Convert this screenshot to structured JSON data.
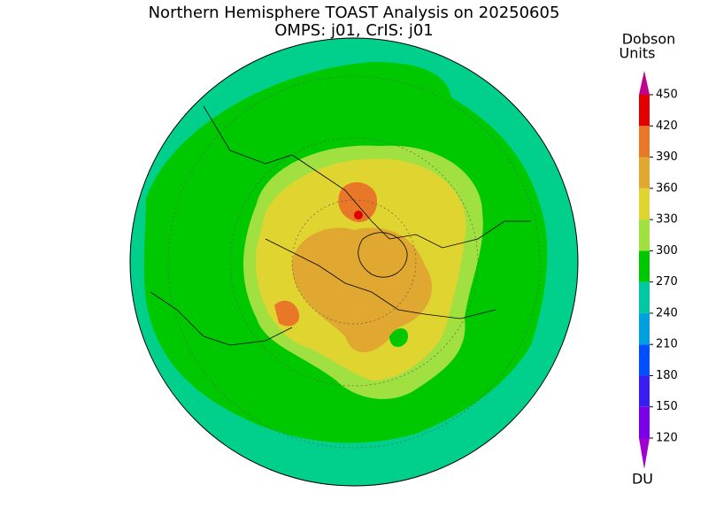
{
  "header": {
    "title": "Northern Hemisphere TOAST Analysis on 20250605",
    "subtitle": "OMPS: j01, CrIS: j01"
  },
  "colorbar": {
    "label_lines": [
      "Dobson",
      "Units"
    ],
    "unit": "DU",
    "ticks": [
      120,
      150,
      180,
      210,
      240,
      270,
      300,
      330,
      360,
      390,
      420,
      450
    ],
    "colors": [
      "#a000d0",
      "#7a00e6",
      "#3a1ef0",
      "#0050ff",
      "#00a0e0",
      "#00c8a0",
      "#00c800",
      "#a0e040",
      "#e0d430",
      "#e0a830",
      "#e87828",
      "#e00000",
      "#c0008c"
    ]
  }
}
